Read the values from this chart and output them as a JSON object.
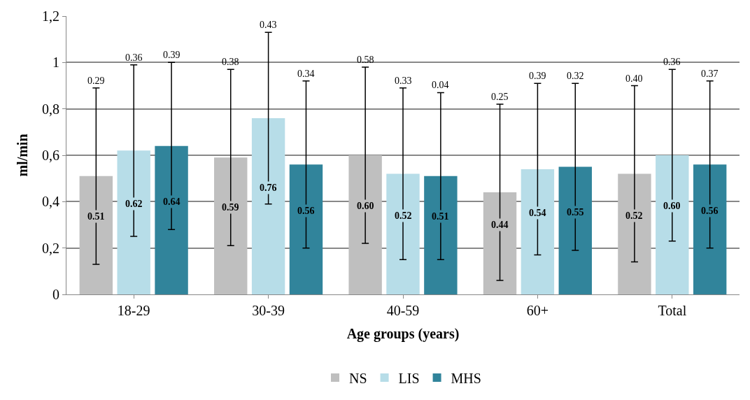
{
  "chart_data": {
    "type": "bar",
    "xlabel": "Age groups (years)",
    "ylabel": "ml/min",
    "categories": [
      "18-29",
      "30-39",
      "40-59",
      "60+",
      "Total"
    ],
    "series": [
      {
        "name": "NS",
        "color": "#bfbfbf",
        "values": [
          0.51,
          0.59,
          0.6,
          0.44,
          0.52
        ],
        "errors": [
          0.38,
          0.38,
          0.38,
          0.38,
          0.38
        ],
        "value_labels": [
          "0.51",
          "0.59",
          "0.60",
          "0.44",
          "0.52"
        ]
      },
      {
        "name": "LIS",
        "color": "#b7dde8",
        "values": [
          0.62,
          0.76,
          0.52,
          0.54,
          0.6
        ],
        "errors": [
          0.37,
          0.37,
          0.37,
          0.37,
          0.37
        ],
        "value_labels": [
          "0.62",
          "0.76",
          "0.52",
          "0.54",
          "0.60"
        ]
      },
      {
        "name": "MHS",
        "color": "#31849b",
        "values": [
          0.64,
          0.56,
          0.51,
          0.55,
          0.56
        ],
        "errors": [
          0.36,
          0.36,
          0.36,
          0.36,
          0.36
        ],
        "value_labels": [
          "0.64",
          "0.56",
          "0.51",
          "0.55",
          "0.56"
        ]
      }
    ],
    "ylim": [
      0,
      1.2
    ],
    "yticks": [
      0,
      {
        "value": 0.2,
        "label": "0,2"
      },
      {
        "value": 0.4,
        "label": "0,4"
      },
      {
        "value": 0.6,
        "label": "0,6"
      },
      {
        "value": 0.8,
        "label": "0,8"
      },
      1,
      {
        "value": 1.2,
        "label": "1,2"
      }
    ],
    "grid": "y",
    "legend": "bottom",
    "annotations": [
      "0.29",
      "0.36",
      "0.39",
      "0.38",
      "0.43",
      "0.34",
      "0.58",
      "0.33",
      "0.04",
      "0.25",
      "0.39",
      "0.32",
      "0.40",
      "0.36",
      "0.37"
    ]
  }
}
